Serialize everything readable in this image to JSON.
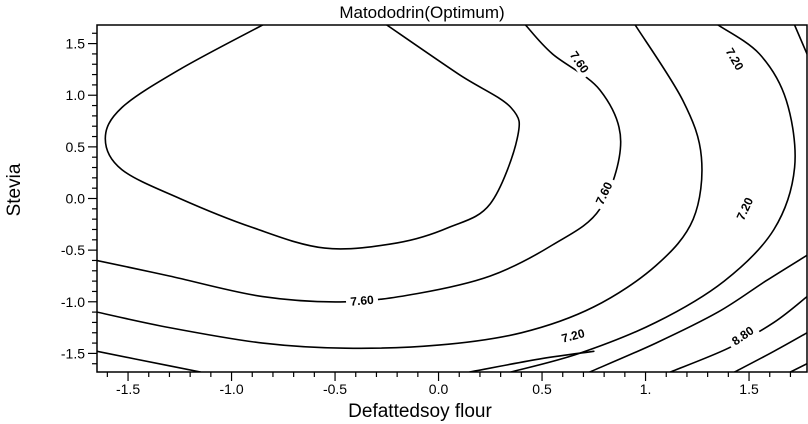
{
  "chart_data": {
    "type": "contour",
    "title": "Matododrin(Optimum)",
    "xlabel": "Defattedsoy flour",
    "ylabel": "Stevia",
    "xlim": [
      -1.65,
      1.78
    ],
    "ylim": [
      -1.68,
      1.68
    ],
    "x_ticks": [
      {
        "value": -1.5,
        "label": "-1.5"
      },
      {
        "value": -1.0,
        "label": "-1.0"
      },
      {
        "value": -0.5,
        "label": "-0.5"
      },
      {
        "value": 0.0,
        "label": "0.0"
      },
      {
        "value": 0.5,
        "label": "0.5"
      },
      {
        "value": 1.0,
        "label": "1."
      },
      {
        "value": 1.5,
        "label": "1.5"
      }
    ],
    "y_ticks": [
      {
        "value": 1.5,
        "label": "1.5"
      },
      {
        "value": 1.0,
        "label": "1.0"
      },
      {
        "value": 0.5,
        "label": "0.5"
      },
      {
        "value": 0.0,
        "label": "0.0"
      },
      {
        "value": -0.5,
        "label": "-0.5"
      },
      {
        "value": -1.0,
        "label": "-1.0"
      },
      {
        "value": -1.5,
        "label": "-1.5"
      }
    ],
    "contours": [
      {
        "points": [
          [
            -0.85,
            1.68
          ],
          [
            -1.25,
            1.25
          ],
          [
            -1.53,
            0.88
          ],
          [
            -1.61,
            0.58
          ],
          [
            -1.53,
            0.28
          ],
          [
            -1.25,
            0.0
          ],
          [
            -0.9,
            -0.28
          ],
          [
            -0.55,
            -0.48
          ],
          [
            -0.2,
            -0.43
          ],
          [
            0.05,
            -0.28
          ],
          [
            0.25,
            -0.05
          ],
          [
            0.38,
            0.58
          ],
          [
            0.35,
            0.88
          ],
          [
            0.1,
            1.2
          ],
          [
            -0.25,
            1.68
          ]
        ]
      },
      {
        "points": [
          [
            -1.65,
            -0.6
          ],
          [
            -1.3,
            -0.75
          ],
          [
            -0.85,
            -0.95
          ],
          [
            -0.45,
            -1.0
          ],
          [
            -0.1,
            -0.92
          ],
          [
            0.25,
            -0.75
          ],
          [
            0.55,
            -0.45
          ],
          [
            0.78,
            -0.1
          ],
          [
            0.88,
            0.55
          ],
          [
            0.78,
            1.05
          ],
          [
            0.55,
            1.4
          ],
          [
            0.42,
            1.68
          ]
        ]
      },
      {
        "points": [
          [
            -1.65,
            -1.1
          ],
          [
            -1.3,
            -1.25
          ],
          [
            -0.85,
            -1.4
          ],
          [
            -0.45,
            -1.45
          ],
          [
            0.0,
            -1.42
          ],
          [
            0.4,
            -1.3
          ],
          [
            0.75,
            -1.05
          ],
          [
            1.05,
            -0.65
          ],
          [
            1.23,
            -0.2
          ],
          [
            1.27,
            0.4
          ],
          [
            1.18,
            0.95
          ],
          [
            0.95,
            1.68
          ]
        ]
      },
      {
        "points": [
          [
            0.35,
            -1.68
          ],
          [
            0.68,
            -1.5
          ],
          [
            1.05,
            -1.2
          ],
          [
            1.38,
            -0.8
          ],
          [
            1.62,
            -0.3
          ],
          [
            1.72,
            0.3
          ],
          [
            1.68,
            0.95
          ],
          [
            1.55,
            1.4
          ],
          [
            1.35,
            1.68
          ]
        ]
      },
      {
        "points": [
          [
            0.15,
            -1.68
          ],
          [
            0.5,
            -1.55
          ],
          [
            0.75,
            -1.48
          ]
        ]
      },
      {
        "points": [
          [
            0.73,
            -1.68
          ],
          [
            1.05,
            -1.4
          ],
          [
            1.35,
            -1.1
          ],
          [
            1.58,
            -0.8
          ],
          [
            1.78,
            -0.55
          ]
        ]
      },
      {
        "points": [
          [
            1.12,
            -1.68
          ],
          [
            1.4,
            -1.45
          ],
          [
            1.62,
            -1.2
          ],
          [
            1.78,
            -0.95
          ]
        ]
      },
      {
        "points": [
          [
            1.43,
            -1.68
          ],
          [
            1.62,
            -1.48
          ],
          [
            1.78,
            -1.3
          ]
        ]
      },
      {
        "points": [
          [
            1.7,
            -1.68
          ],
          [
            1.78,
            -1.6
          ]
        ]
      },
      {
        "points": [
          [
            1.72,
            1.68
          ],
          [
            1.78,
            1.4
          ]
        ]
      },
      {
        "points": [
          [
            -1.65,
            -1.48
          ],
          [
            -1.3,
            -1.62
          ],
          [
            -1.15,
            -1.68
          ]
        ]
      }
    ],
    "contour_labels": [
      {
        "text": "7.60",
        "x": 0.68,
        "y": 1.32,
        "angle": 55
      },
      {
        "text": "7.60",
        "x": 0.8,
        "y": 0.05,
        "angle": -65
      },
      {
        "text": "7.60",
        "x": -0.37,
        "y": -0.99,
        "angle": -5
      },
      {
        "text": "7.20",
        "x": 1.43,
        "y": 1.35,
        "angle": 60
      },
      {
        "text": "7.20",
        "x": 1.48,
        "y": -0.1,
        "angle": -65
      },
      {
        "text": "7.20",
        "x": 0.65,
        "y": -1.33,
        "angle": -15
      },
      {
        "text": "8.80",
        "x": 1.47,
        "y": -1.33,
        "angle": -35
      }
    ]
  }
}
